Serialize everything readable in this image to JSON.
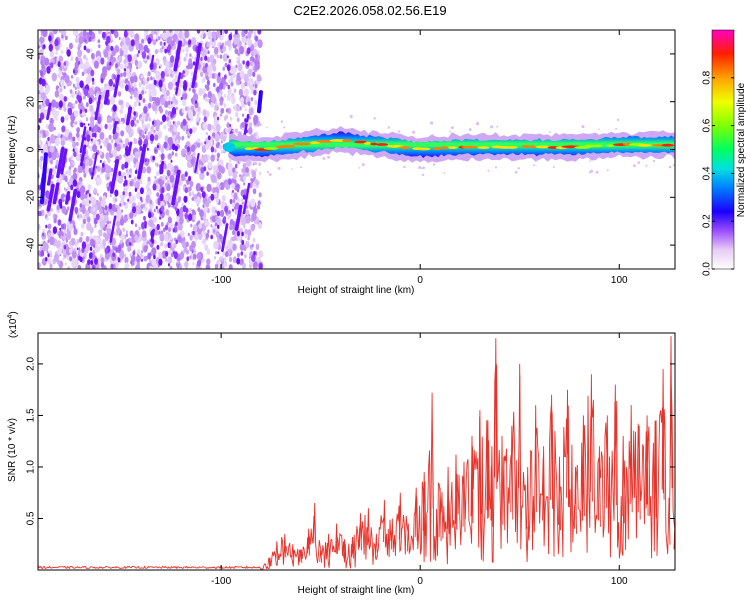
{
  "title": "C2E2.2026.058.02.56.E19",
  "colors": {
    "snr_line": "#e8332b",
    "band_core": "#2b00ff",
    "scatter": "#c9a3f5",
    "streak": "#6a10ff"
  },
  "chart_data": [
    {
      "type": "heatmap",
      "name": "spectrogram",
      "title": "C2E2.2026.058.02.56.E19",
      "xlabel": "Height of straight line (km)",
      "ylabel": "Frequency (Hz)",
      "xlim": [
        -192,
        128
      ],
      "ylim": [
        -50,
        50
      ],
      "xticks": [
        -100,
        0,
        100
      ],
      "yticks": [
        -40,
        -20,
        0,
        20,
        40
      ],
      "grid": false,
      "band": {
        "x": [
          -96,
          -80,
          -60,
          -40,
          -20,
          0,
          20,
          40,
          60,
          80,
          100,
          128
        ],
        "center_freq": [
          1,
          0,
          2,
          4,
          2,
          0,
          1,
          1,
          1,
          1,
          2,
          2
        ],
        "max_amplitude": [
          0.5,
          0.6,
          0.9,
          0.95,
          0.9,
          0.85,
          0.75,
          0.7,
          0.85,
          0.7,
          0.65,
          0.6
        ]
      },
      "noise_region_x": [
        -192,
        -80
      ],
      "colorbar": {
        "label": "Normalized spectral amplitude",
        "range": [
          0,
          1
        ],
        "ticks": [
          "0.0",
          "0.2",
          "0.4",
          "0.6",
          "0.8"
        ],
        "tick_values": [
          0.0,
          0.2,
          0.4,
          0.6,
          0.8
        ]
      }
    },
    {
      "type": "line",
      "name": "snr",
      "xlabel": "Height of straight line (km)",
      "ylabel": "SNR (10 * v/v)",
      "scale_note": "(x10",
      "scale_exp": "4",
      "scale_close": ")",
      "xlim": [
        -192,
        128
      ],
      "ylim": [
        0,
        2.3
      ],
      "xticks": [
        -100,
        0,
        100
      ],
      "yticks": [
        0.5,
        1.0,
        1.5,
        2.0
      ],
      "ytick_labels": [
        "0.5",
        "1.0",
        "1.5",
        "2.0"
      ],
      "grid": false,
      "series": [
        {
          "name": "SNR",
          "x": [
            -192,
            -80,
            -76,
            -72,
            -68,
            -64,
            -60,
            -56,
            -53,
            -50,
            -46,
            -42,
            -38,
            -34,
            -30,
            -26,
            -22,
            -18,
            -14,
            -10,
            -6,
            -2,
            2,
            6,
            10,
            14,
            18,
            22,
            26,
            30,
            34,
            36,
            38,
            42,
            46,
            50,
            54,
            58,
            62,
            66,
            70,
            74,
            78,
            82,
            86,
            90,
            94,
            98,
            102,
            106,
            110,
            114,
            118,
            122,
            125,
            126,
            128
          ],
          "values": [
            0.02,
            0.03,
            0.12,
            0.28,
            0.35,
            0.25,
            0.2,
            0.4,
            0.65,
            0.2,
            0.35,
            0.45,
            0.3,
            0.32,
            0.55,
            0.6,
            0.35,
            0.68,
            0.5,
            0.75,
            0.45,
            0.8,
            0.95,
            1.72,
            0.8,
            1.0,
            1.12,
            1.05,
            1.3,
            1.55,
            1.45,
            1.2,
            2.25,
            1.1,
            1.4,
            2.0,
            1.0,
            1.6,
            1.2,
            1.7,
            1.1,
            1.75,
            1.0,
            1.5,
            1.9,
            1.2,
            1.5,
            1.8,
            1.3,
            1.6,
            1.4,
            1.5,
            1.45,
            1.95,
            0.7,
            2.27,
            0.5
          ]
        }
      ]
    }
  ]
}
